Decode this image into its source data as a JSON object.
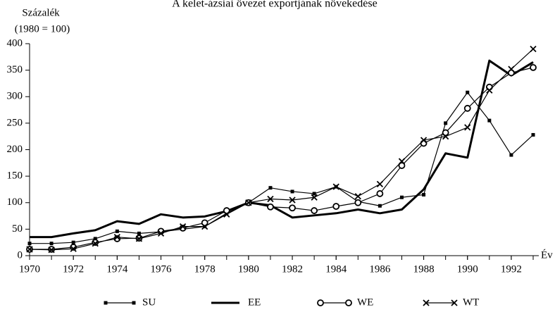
{
  "chart_data": {
    "type": "line",
    "title": "A kelet-ázsiai övezet exportjának növekedése",
    "ylabel": [
      "Százalék",
      "(1980 = 100)"
    ],
    "xlabel": "Év",
    "x": [
      1970,
      1971,
      1972,
      1973,
      1974,
      1975,
      1976,
      1977,
      1978,
      1979,
      1980,
      1981,
      1982,
      1983,
      1984,
      1985,
      1986,
      1987,
      1988,
      1989,
      1990,
      1991,
      1992,
      1993
    ],
    "series": [
      {
        "name": "SU",
        "color": "#000",
        "marker": "square",
        "width": 1.2,
        "values": [
          23,
          23,
          25,
          32,
          46,
          42,
          45,
          50,
          55,
          80,
          100,
          128,
          121,
          117,
          130,
          102,
          94,
          110,
          115,
          250,
          308,
          255,
          190,
          228
        ]
      },
      {
        "name": "EE",
        "color": "#000",
        "marker": "none",
        "width": 3,
        "values": [
          35,
          35,
          42,
          48,
          65,
          60,
          78,
          72,
          74,
          84,
          100,
          95,
          72,
          76,
          80,
          87,
          80,
          87,
          125,
          193,
          185,
          368,
          340,
          365
        ]
      },
      {
        "name": "WE",
        "color": "#000",
        "marker": "circle",
        "width": 1.2,
        "values": [
          12,
          12,
          16,
          25,
          32,
          33,
          46,
          52,
          62,
          85,
          100,
          92,
          90,
          85,
          93,
          100,
          117,
          170,
          212,
          232,
          278,
          318,
          345,
          355
        ]
      },
      {
        "name": "WT",
        "color": "#000",
        "marker": "cross",
        "width": 1.2,
        "values": [
          12,
          11,
          13,
          23,
          35,
          32,
          42,
          55,
          55,
          78,
          100,
          107,
          105,
          110,
          130,
          112,
          135,
          178,
          218,
          225,
          242,
          312,
          352,
          390
        ]
      }
    ],
    "xlim": [
      1970,
      1993
    ],
    "xticks": [
      1970,
      1972,
      1974,
      1976,
      1978,
      1980,
      1982,
      1984,
      1986,
      1988,
      1990,
      1992
    ],
    "ylim": [
      0,
      400
    ],
    "yticks": [
      0,
      50,
      100,
      150,
      200,
      250,
      300,
      350,
      400
    ],
    "grid": false,
    "legend": "bottom"
  }
}
